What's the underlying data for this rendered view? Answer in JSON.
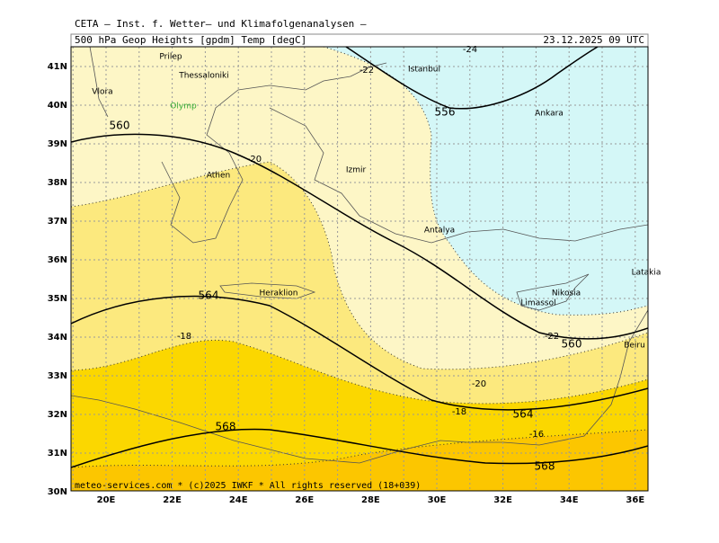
{
  "header": {
    "source": "CETA — Inst. f. Wetter— und Klimafolgenanalysen —",
    "title": "500 hPa Geop Heights [gpdm] Temp [degC]",
    "datetime": "23.12.2025 09 UTC"
  },
  "axes": {
    "lon_labels": [
      "20E",
      "22E",
      "24E",
      "26E",
      "28E",
      "30E",
      "32E",
      "34E",
      "36E"
    ],
    "lat_labels": [
      "41N",
      "40N",
      "39N",
      "38N",
      "37N",
      "36N",
      "35N",
      "34N",
      "33N",
      "32N",
      "31N",
      "30N"
    ]
  },
  "height_labels": [
    "560",
    "556",
    "564",
    "564",
    "560",
    "568",
    "568"
  ],
  "temp_labels": [
    "-20",
    "-22",
    "-24",
    "-18",
    "-20",
    "-18",
    "-16",
    "-22"
  ],
  "places": [
    "Prilep",
    "Thessaloniki",
    "Vlora",
    "Olymp",
    "Athen",
    "Izmir",
    "Istanbul",
    "Ankara",
    "Antalya",
    "Heraklion",
    "Nikosia",
    "Limassol",
    "Latakia",
    "Beiru"
  ],
  "footer": "meteo-services.com * (c)2025 IWKF * All rights reserved (18+039)"
}
